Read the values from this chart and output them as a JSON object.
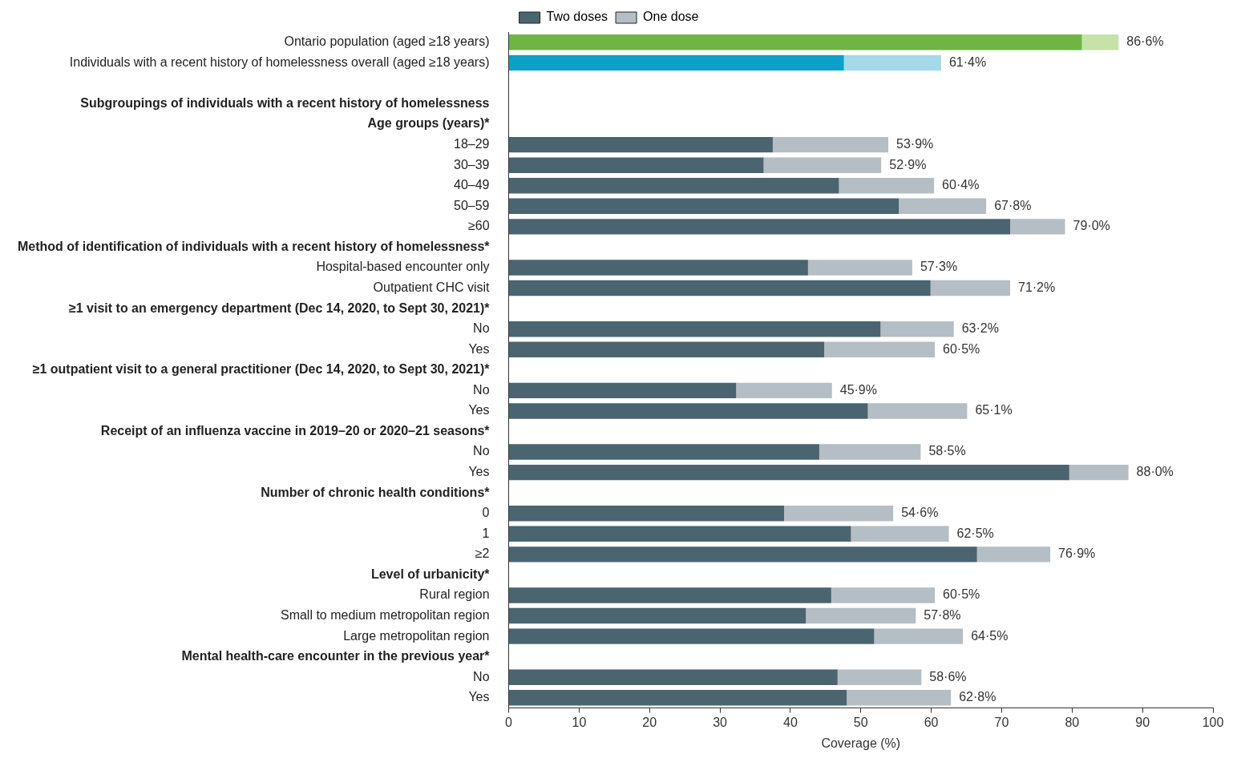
{
  "chart_data": {
    "type": "bar",
    "orientation": "horizontal",
    "stacked": true,
    "xlabel": "Coverage (%)",
    "xlim": [
      0,
      100
    ],
    "xticks": [
      0,
      10,
      20,
      30,
      40,
      50,
      60,
      70,
      80,
      90,
      100
    ],
    "grid": false,
    "legend": "top",
    "categories": [
      "Ontario population (aged ≥18 years)",
      "Individuals with a recent history of homelessness overall (aged ≥18 years)",
      null,
      "Subgroupings of individuals with a recent history of homelessness",
      "Age groups (years)*",
      "18–29",
      "30–39",
      "40–49",
      "50–59",
      "≥60",
      "Method of identification of individuals with a recent history of homelessness*",
      "Hospital-based encounter only",
      "Outpatient CHC visit",
      "≥1 visit to an emergency department (Dec 14, 2020, to Sept 30, 2021)*",
      "No",
      "Yes",
      "≥1 outpatient visit to a general practitioner (Dec 14, 2020, to Sept 30, 2021)*",
      "No",
      "Yes",
      "Receipt of an influenza vaccine in 2019–20 or 2020–21 seasons*",
      "No",
      "Yes",
      "Number of chronic health conditions*",
      "0",
      "1",
      "≥2",
      "Level of urbanicity*",
      "Rural region",
      "Small to medium metropolitan region",
      "Large metropolitan region",
      "Mental health-care encounter in the previous year*",
      "No",
      "Yes"
    ],
    "series": [
      {
        "name": "Two doses",
        "color": "#4a6470",
        "colors": [
          "#70b443",
          "#0da0c8",
          null,
          null,
          null,
          "#4a6470",
          "#4a6470",
          "#4a6470",
          "#4a6470",
          "#4a6470",
          null,
          "#4a6470",
          "#4a6470",
          null,
          "#4a6470",
          "#4a6470",
          null,
          "#4a6470",
          "#4a6470",
          null,
          "#4a6470",
          "#4a6470",
          null,
          "#4a6470",
          "#4a6470",
          "#4a6470",
          null,
          "#4a6470",
          "#4a6470",
          "#4a6470",
          null,
          "#4a6470",
          "#4a6470"
        ],
        "values": [
          81.4,
          47.6,
          null,
          null,
          null,
          37.5,
          36.2,
          46.9,
          55.4,
          71.2,
          null,
          42.5,
          59.9,
          null,
          52.8,
          44.8,
          null,
          32.3,
          51.0,
          null,
          44.1,
          79.6,
          null,
          39.1,
          48.6,
          66.5,
          null,
          45.8,
          42.2,
          51.9,
          null,
          46.7,
          48.0
        ]
      },
      {
        "name": "One dose",
        "color": "#b5bec4",
        "colors": [
          "#c5e3a9",
          "#a4d8ea",
          null,
          null,
          null,
          "#b5bec4",
          "#b5bec4",
          "#b5bec4",
          "#b5bec4",
          "#b5bec4",
          null,
          "#b5bec4",
          "#b5bec4",
          null,
          "#b5bec4",
          "#b5bec4",
          null,
          "#b5bec4",
          "#b5bec4",
          null,
          "#b5bec4",
          "#b5bec4",
          null,
          "#b5bec4",
          "#b5bec4",
          "#b5bec4",
          null,
          "#b5bec4",
          "#b5bec4",
          "#b5bec4",
          null,
          "#b5bec4",
          "#b5bec4"
        ],
        "values": [
          5.2,
          13.8,
          null,
          null,
          null,
          16.4,
          16.7,
          13.5,
          12.4,
          7.8,
          null,
          14.8,
          11.3,
          null,
          10.4,
          15.7,
          null,
          13.6,
          14.1,
          null,
          14.4,
          8.4,
          null,
          15.5,
          13.9,
          10.4,
          null,
          14.7,
          15.6,
          12.6,
          null,
          11.9,
          14.8
        ]
      }
    ],
    "totals": [
      "86·6%",
      "61·4%",
      null,
      null,
      null,
      "53·9%",
      "52·9%",
      "60·4%",
      "67·8%",
      "79·0%",
      null,
      "57·3%",
      "71·2%",
      null,
      "63·2%",
      "60·5%",
      null,
      "45·9%",
      "65·1%",
      null,
      "58·5%",
      "88·0%",
      null,
      "54·6%",
      "62·5%",
      "76·9%",
      null,
      "60·5%",
      "57·8%",
      "64·5%",
      null,
      "58·6%",
      "62·8%"
    ]
  }
}
